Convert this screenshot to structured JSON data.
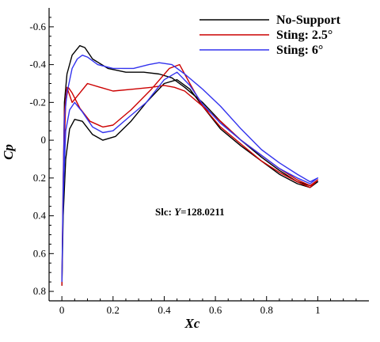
{
  "chart_data": {
    "type": "line",
    "title": "",
    "xlabel": "Xc",
    "ylabel": "Cp",
    "xlim": [
      -0.05,
      1.2
    ],
    "ylim": [
      0.85,
      -0.7
    ],
    "y_inverted": true,
    "x_ticks": [
      0,
      0.2,
      0.4,
      0.6,
      0.8,
      1
    ],
    "x_tick_labels": [
      "0",
      "0.2",
      "0.4",
      "0.6",
      "0.8",
      "1"
    ],
    "y_ticks": [
      -0.6,
      -0.4,
      -0.2,
      0,
      0.2,
      0.4,
      0.6,
      0.8
    ],
    "y_tick_labels": [
      "-0.6",
      "-0.4",
      "-0.2",
      "0",
      "0.2",
      "0.4",
      "0.6",
      "0.8"
    ],
    "grid": false,
    "legend_position": "top-right",
    "annotation": {
      "prefix": "Slc: ",
      "var": "Y",
      "value": "=128.0211"
    },
    "series": [
      {
        "name": "No-Support",
        "color": "#000000",
        "x": [
          0.0,
          0.005,
          0.01,
          0.02,
          0.04,
          0.07,
          0.09,
          0.12,
          0.18,
          0.25,
          0.32,
          0.38,
          0.43,
          0.48,
          0.55,
          0.62,
          0.7,
          0.78,
          0.85,
          0.92,
          0.97,
          1.0,
          0.97,
          0.92,
          0.85,
          0.78,
          0.7,
          0.62,
          0.55,
          0.5,
          0.45,
          0.4,
          0.33,
          0.27,
          0.21,
          0.16,
          0.12,
          0.08,
          0.05,
          0.03,
          0.015,
          0.005,
          0.0
        ],
        "y": [
          0.77,
          0.3,
          -0.2,
          -0.35,
          -0.45,
          -0.5,
          -0.49,
          -0.43,
          -0.38,
          -0.36,
          -0.36,
          -0.35,
          -0.33,
          -0.28,
          -0.2,
          -0.1,
          0.0,
          0.09,
          0.16,
          0.22,
          0.24,
          0.22,
          0.25,
          0.23,
          0.18,
          0.11,
          0.03,
          -0.06,
          -0.18,
          -0.27,
          -0.32,
          -0.3,
          -0.2,
          -0.1,
          -0.02,
          0.0,
          -0.03,
          -0.1,
          -0.11,
          -0.06,
          0.1,
          0.4,
          0.77
        ]
      },
      {
        "name": "Sting: 2.5°",
        "color": "#cc0000",
        "x": [
          0.0,
          0.005,
          0.01,
          0.02,
          0.04,
          0.07,
          0.1,
          0.15,
          0.2,
          0.28,
          0.35,
          0.4,
          0.44,
          0.48,
          0.55,
          0.62,
          0.7,
          0.78,
          0.85,
          0.92,
          0.97,
          1.0,
          0.97,
          0.92,
          0.85,
          0.78,
          0.7,
          0.62,
          0.55,
          0.5,
          0.46,
          0.42,
          0.35,
          0.27,
          0.2,
          0.16,
          0.11,
          0.07,
          0.04,
          0.025,
          0.015,
          0.005,
          0.0
        ],
        "y": [
          0.77,
          0.2,
          -0.15,
          -0.28,
          -0.2,
          -0.25,
          -0.3,
          -0.28,
          -0.26,
          -0.27,
          -0.28,
          -0.29,
          -0.28,
          -0.26,
          -0.18,
          -0.1,
          0.0,
          0.08,
          0.15,
          0.21,
          0.24,
          0.21,
          0.25,
          0.22,
          0.17,
          0.11,
          0.02,
          -0.07,
          -0.18,
          -0.3,
          -0.4,
          -0.38,
          -0.27,
          -0.16,
          -0.08,
          -0.07,
          -0.1,
          -0.17,
          -0.25,
          -0.28,
          -0.2,
          0.2,
          0.77
        ]
      },
      {
        "name": "Sting: 6°",
        "color": "#3333ee",
        "x": [
          0.0,
          0.005,
          0.01,
          0.02,
          0.04,
          0.06,
          0.08,
          0.1,
          0.14,
          0.2,
          0.28,
          0.34,
          0.38,
          0.43,
          0.48,
          0.55,
          0.62,
          0.7,
          0.78,
          0.85,
          0.92,
          0.97,
          1.0,
          0.97,
          0.92,
          0.85,
          0.78,
          0.7,
          0.62,
          0.55,
          0.5,
          0.45,
          0.4,
          0.33,
          0.26,
          0.2,
          0.16,
          0.12,
          0.08,
          0.05,
          0.03,
          0.015,
          0.005,
          0.0
        ],
        "y": [
          0.75,
          0.25,
          -0.12,
          -0.25,
          -0.38,
          -0.43,
          -0.45,
          -0.44,
          -0.4,
          -0.38,
          -0.38,
          -0.4,
          -0.41,
          -0.4,
          -0.35,
          -0.27,
          -0.18,
          -0.06,
          0.05,
          0.12,
          0.18,
          0.22,
          0.2,
          0.23,
          0.2,
          0.15,
          0.08,
          0.0,
          -0.09,
          -0.19,
          -0.29,
          -0.36,
          -0.32,
          -0.2,
          -0.12,
          -0.05,
          -0.04,
          -0.07,
          -0.15,
          -0.2,
          -0.16,
          -0.05,
          0.3,
          0.75
        ]
      }
    ]
  }
}
